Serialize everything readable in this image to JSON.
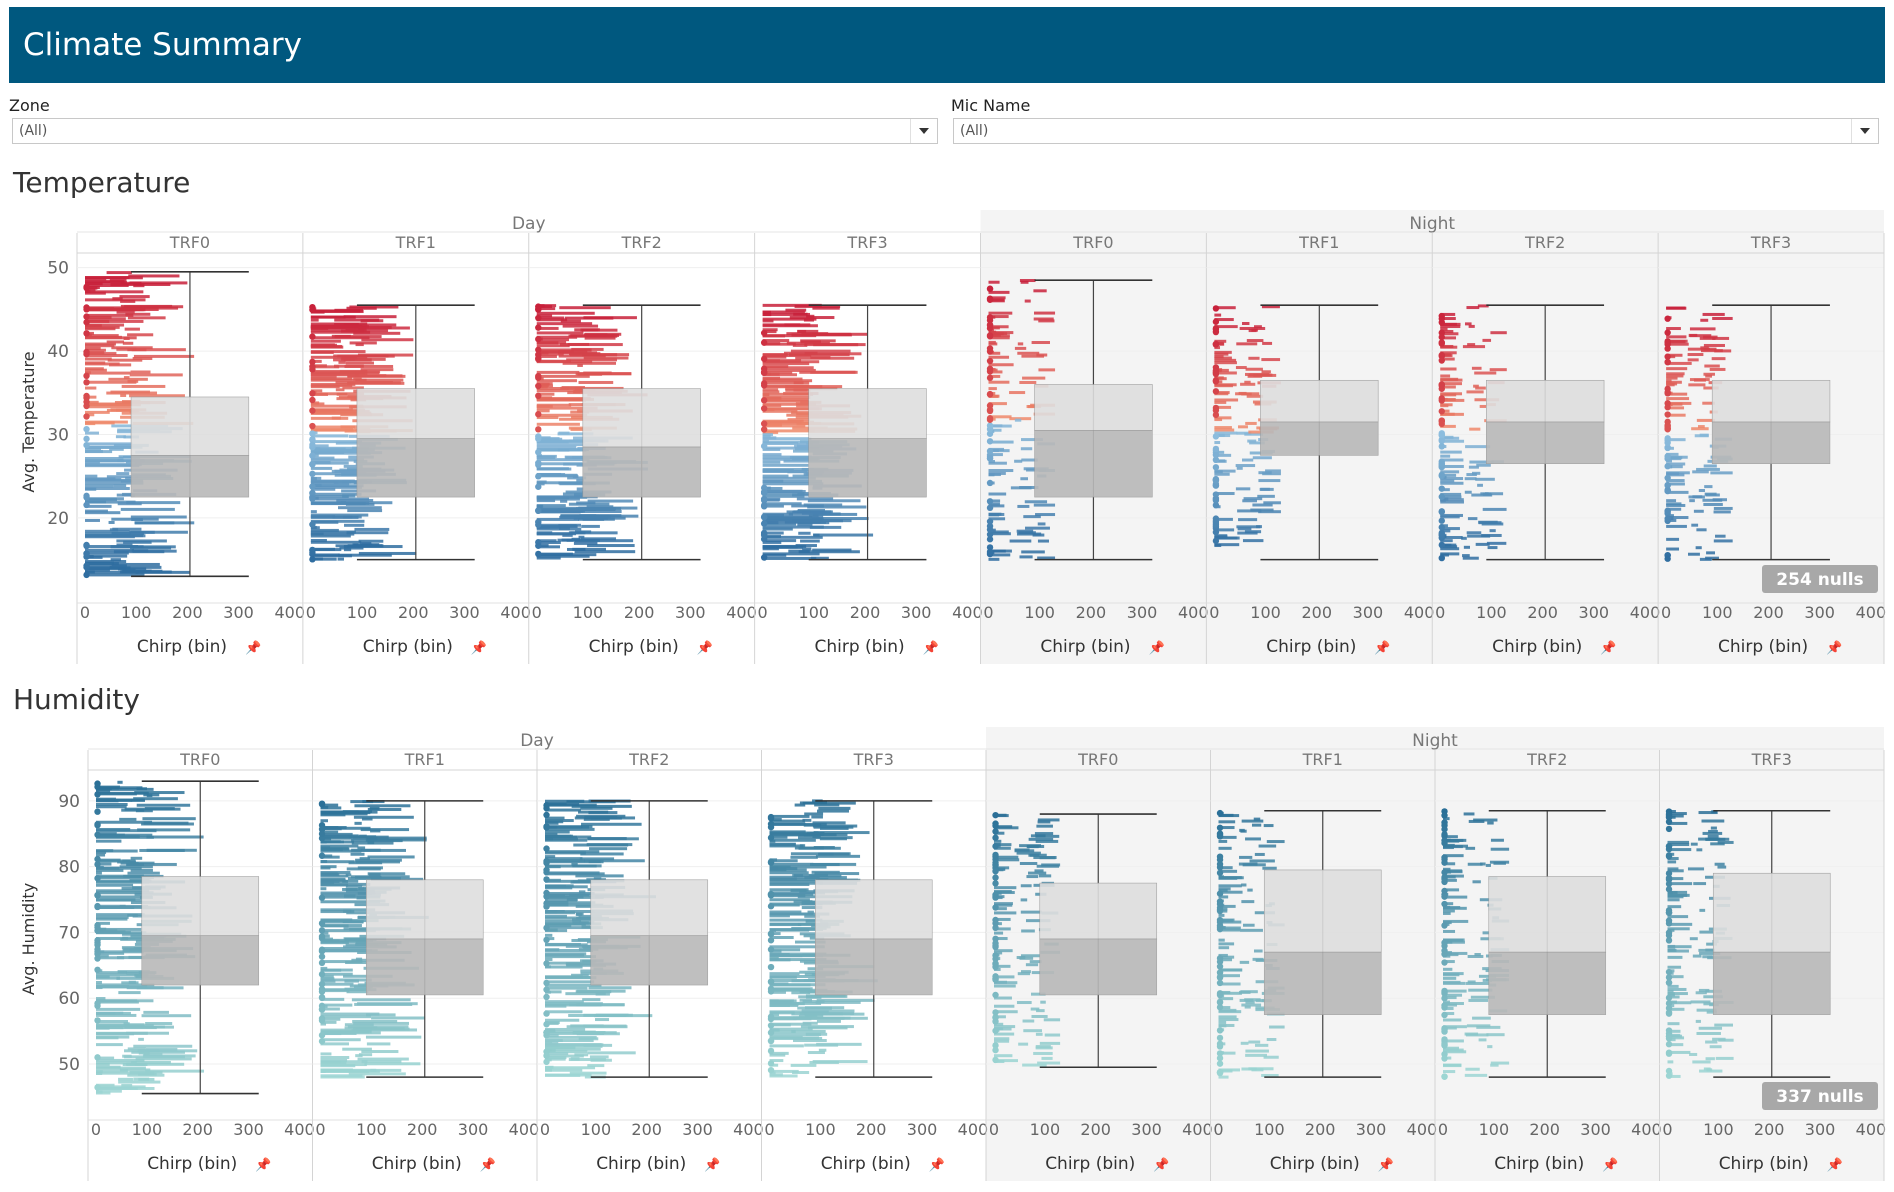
{
  "header": {
    "title": "Climate Summary"
  },
  "filters": [
    {
      "label": "Zone",
      "value": "(All)"
    },
    {
      "label": "Mic Name",
      "value": "(All)"
    }
  ],
  "colors": {
    "banner": "#00587f",
    "night_bg": "#f4f4f4",
    "hot": "#c8203a",
    "warm": "#ef8a6b",
    "cool": "#8fbfdf",
    "cold": "#2f6da0",
    "humid_dark": "#2a6f97",
    "humid_light": "#9dd6d3",
    "box_upper": "#dedede",
    "box_lower": "#b9b9b9"
  },
  "charts": [
    {
      "title": "Temperature",
      "y_axis_label": "Avg. Temperature",
      "y_ticks": [
        "20",
        "30",
        "40",
        "50"
      ],
      "y_range": [
        11,
        52
      ],
      "x_ticks": [
        "0",
        "100",
        "200",
        "300",
        "400"
      ],
      "x_label": "Chirp (bin)",
      "x_label_pin_icon": "pin-icon",
      "groups": [
        "Day",
        "Night"
      ],
      "panels": [
        "TRF0",
        "TRF1",
        "TRF2",
        "TRF3",
        "TRF0",
        "TRF1",
        "TRF2",
        "TRF3"
      ],
      "nulls_badge": "254 nulls",
      "boxplots": [
        {
          "min": 13,
          "q1": 22.5,
          "median": 27.5,
          "q3": 34.5,
          "max": 49.5
        },
        {
          "min": 15,
          "q1": 22.5,
          "median": 29.5,
          "q3": 35.5,
          "max": 45.5
        },
        {
          "min": 15,
          "q1": 22.5,
          "median": 28.5,
          "q3": 35.5,
          "max": 45.5
        },
        {
          "min": 15,
          "q1": 22.5,
          "median": 29.5,
          "q3": 35.5,
          "max": 45.5
        },
        {
          "min": 15,
          "q1": 22.5,
          "median": 30.5,
          "q3": 36,
          "max": 48.5
        },
        {
          "min": 15,
          "q1": 27.5,
          "median": 31.5,
          "q3": 36.5,
          "max": 45.5
        },
        {
          "min": 15,
          "q1": 26.5,
          "median": 31.5,
          "q3": 36.5,
          "max": 45.5
        },
        {
          "min": 15,
          "q1": 26.5,
          "median": 31.5,
          "q3": 36.5,
          "max": 45.5
        }
      ]
    },
    {
      "title": "Humidity",
      "y_axis_label": "Avg. Humidity",
      "y_ticks": [
        "50",
        "60",
        "70",
        "80",
        "90"
      ],
      "y_range": [
        43,
        95
      ],
      "x_ticks": [
        "0",
        "100",
        "200",
        "300",
        "400"
      ],
      "x_label": "Chirp (bin)",
      "x_label_pin_icon": "pin-icon",
      "groups": [
        "Day",
        "Night"
      ],
      "panels": [
        "TRF0",
        "TRF1",
        "TRF2",
        "TRF3",
        "TRF0",
        "TRF1",
        "TRF2",
        "TRF3"
      ],
      "nulls_badge": "337 nulls",
      "boxplots": [
        {
          "min": 45.5,
          "q1": 62,
          "median": 69.5,
          "q3": 78.5,
          "max": 93
        },
        {
          "min": 48,
          "q1": 60.5,
          "median": 69,
          "q3": 78,
          "max": 90
        },
        {
          "min": 48,
          "q1": 62,
          "median": 69.5,
          "q3": 78,
          "max": 90
        },
        {
          "min": 48,
          "q1": 60.5,
          "median": 69,
          "q3": 78,
          "max": 90
        },
        {
          "min": 49.5,
          "q1": 60.5,
          "median": 69,
          "q3": 77.5,
          "max": 88
        },
        {
          "min": 48,
          "q1": 57.5,
          "median": 67,
          "q3": 79.5,
          "max": 88.5
        },
        {
          "min": 48,
          "q1": 57.5,
          "median": 67,
          "q3": 78.5,
          "max": 88.5
        },
        {
          "min": 48,
          "q1": 57.5,
          "median": 67,
          "q3": 79,
          "max": 88.5
        }
      ]
    }
  ]
}
